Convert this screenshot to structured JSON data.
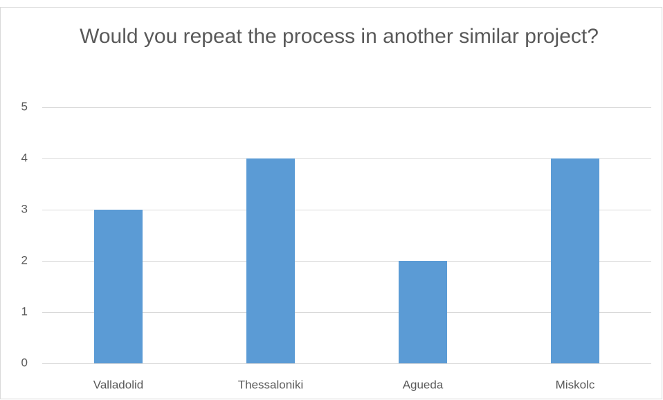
{
  "chart_data": {
    "type": "bar",
    "title": "Would you repeat the process in another similar project?",
    "categories": [
      "Valladolid",
      "Thessaloniki",
      "Agueda",
      "Miskolc"
    ],
    "values": [
      3,
      4,
      2,
      4
    ],
    "color": "#5b9bd5",
    "ylim": [
      0,
      5
    ],
    "yticks": [
      0,
      1,
      2,
      3,
      4,
      5
    ],
    "grid": true
  }
}
